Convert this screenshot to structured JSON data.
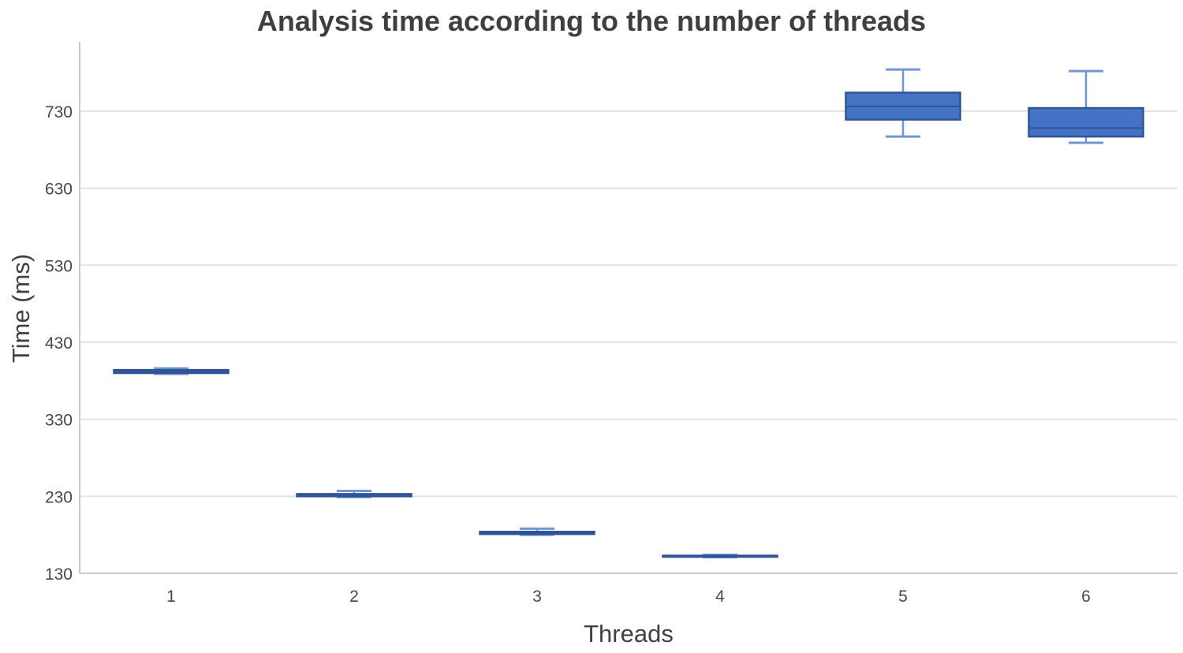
{
  "title": "Analysis time according to the number of threads",
  "chart_data": {
    "type": "boxplot",
    "title": "Analysis time according to the number of threads",
    "xlabel": "Threads",
    "ylabel": "Time (ms)",
    "categories": [
      "1",
      "2",
      "3",
      "4",
      "5",
      "6"
    ],
    "yticks": [
      130,
      230,
      330,
      430,
      530,
      630,
      730
    ],
    "ylim": [
      130,
      820
    ],
    "grid": true,
    "legend": false,
    "series": [
      {
        "category": "1",
        "min": 389,
        "q1": 390,
        "median": 392,
        "q3": 394,
        "max": 396
      },
      {
        "category": "2",
        "min": 229,
        "q1": 230,
        "median": 231,
        "q3": 233,
        "max": 237
      },
      {
        "category": "3",
        "min": 180,
        "q1": 181,
        "median": 182,
        "q3": 184,
        "max": 188
      },
      {
        "category": "4",
        "min": 151,
        "q1": 152,
        "median": 152,
        "q3": 153,
        "max": 154
      },
      {
        "category": "5",
        "min": 697,
        "q1": 719,
        "median": 736,
        "q3": 754,
        "max": 784
      },
      {
        "category": "6",
        "min": 689,
        "q1": 697,
        "median": 708,
        "q3": 734,
        "max": 782
      }
    ],
    "colors": {
      "box_fill": "#4472C4",
      "box_border": "#2F5597",
      "median_line": "#2F5597",
      "whisker": "#7096D6",
      "gridline": "#E2E2E2",
      "axis_line": "#C8C8C8",
      "tick_text": "#474747",
      "title_text": "#3F3F3F"
    }
  }
}
